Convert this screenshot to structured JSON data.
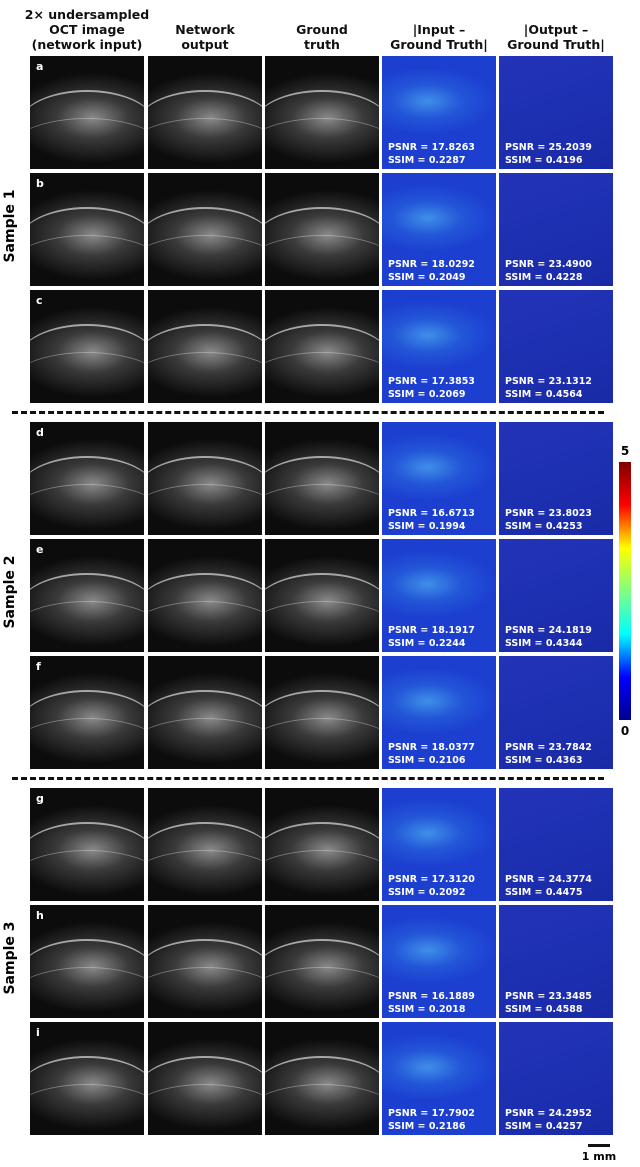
{
  "headers": [
    "2× undersampled\nOCT image\n(network input)",
    "Network\noutput",
    "Ground\ntruth",
    "|Input –\nGround Truth|",
    "|Output –\nGround Truth|"
  ],
  "samples": [
    {
      "label": "Sample 1",
      "panels": [
        {
          "letter": "a",
          "input_psnr": "PSNR = 17.8263",
          "input_ssim": "SSIM = 0.2287",
          "output_psnr": "PSNR = 25.2039",
          "output_ssim": "SSIM = 0.4196"
        },
        {
          "letter": "b",
          "input_psnr": "PSNR = 18.0292",
          "input_ssim": "SSIM = 0.2049",
          "output_psnr": "PSNR = 23.4900",
          "output_ssim": "SSIM = 0.4228"
        },
        {
          "letter": "c",
          "input_psnr": "PSNR = 17.3853",
          "input_ssim": "SSIM = 0.2069",
          "output_psnr": "PSNR = 23.1312",
          "output_ssim": "SSIM = 0.4564"
        }
      ]
    },
    {
      "label": "Sample 2",
      "panels": [
        {
          "letter": "d",
          "input_psnr": "PSNR = 16.6713",
          "input_ssim": "SSIM = 0.1994",
          "output_psnr": "PSNR = 23.8023",
          "output_ssim": "SSIM = 0.4253"
        },
        {
          "letter": "e",
          "input_psnr": "PSNR = 18.1917",
          "input_ssim": "SSIM = 0.2244",
          "output_psnr": "PSNR = 24.1819",
          "output_ssim": "SSIM = 0.4344"
        },
        {
          "letter": "f",
          "input_psnr": "PSNR = 18.0377",
          "input_ssim": "SSIM = 0.2106",
          "output_psnr": "PSNR = 23.7842",
          "output_ssim": "SSIM = 0.4363"
        }
      ]
    },
    {
      "label": "Sample 3",
      "panels": [
        {
          "letter": "g",
          "input_psnr": "PSNR = 17.3120",
          "input_ssim": "SSIM = 0.2092",
          "output_psnr": "PSNR = 24.3774",
          "output_ssim": "SSIM = 0.4475"
        },
        {
          "letter": "h",
          "input_psnr": "PSNR = 16.1889",
          "input_ssim": "SSIM = 0.2018",
          "output_psnr": "PSNR = 23.3485",
          "output_ssim": "SSIM = 0.4588"
        },
        {
          "letter": "i",
          "input_psnr": "PSNR = 17.7902",
          "input_ssim": "SSIM = 0.2186",
          "output_psnr": "PSNR = 24.2952",
          "output_ssim": "SSIM = 0.4257"
        }
      ]
    }
  ],
  "colorbar": {
    "max": "5",
    "min": "0"
  },
  "scale_bar": "1 mm"
}
